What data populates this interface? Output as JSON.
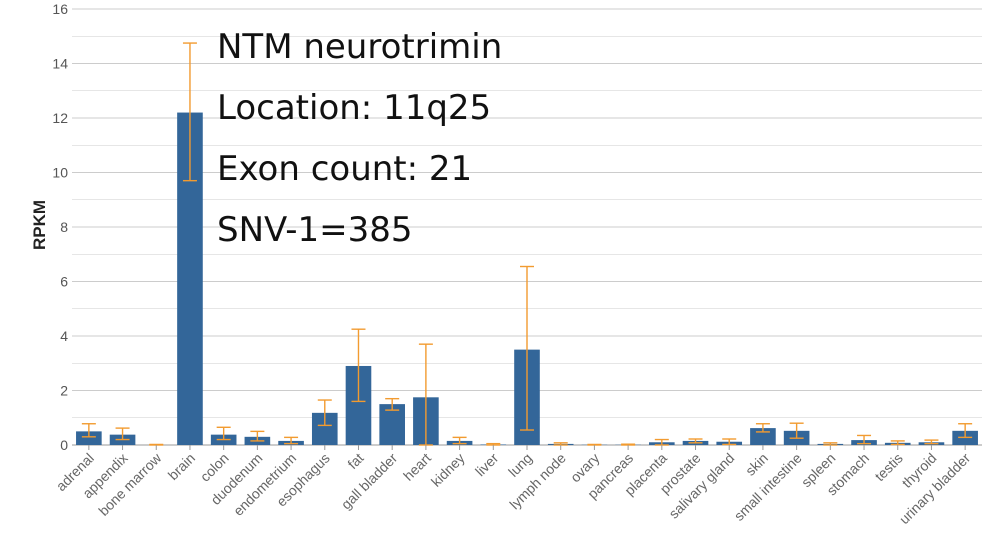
{
  "chart_data": {
    "type": "bar",
    "annotations": [
      "NTM neurotrimin",
      "Location: 11q25",
      "Exon count: 21",
      "SNV-1=385"
    ],
    "xlabel": "",
    "ylabel": "RPKM",
    "ylim": [
      0,
      16
    ],
    "yticks": [
      0,
      2,
      4,
      6,
      8,
      10,
      12,
      14,
      16
    ],
    "grid": true,
    "categories": [
      "adrenal",
      "appendix",
      "bone marrow",
      "brain",
      "colon",
      "duodenum",
      "endometrium",
      "esophagus",
      "fat",
      "gall bladder",
      "heart",
      "kidney",
      "liver",
      "lung",
      "lymph node",
      "ovary",
      "pancreas",
      "placenta",
      "prostate",
      "salivary gland",
      "skin",
      "small intestine",
      "spleen",
      "stomach",
      "testis",
      "thyroid",
      "urinary bladder"
    ],
    "values": [
      0.5,
      0.38,
      0.0,
      12.2,
      0.38,
      0.3,
      0.15,
      1.18,
      2.9,
      1.5,
      1.75,
      0.15,
      0.02,
      3.5,
      0.04,
      0.01,
      0.01,
      0.1,
      0.15,
      0.12,
      0.62,
      0.52,
      0.04,
      0.18,
      0.08,
      0.1,
      0.52
    ],
    "err_low": [
      0.3,
      0.2,
      0.0,
      9.7,
      0.2,
      0.15,
      0.05,
      0.72,
      1.6,
      1.28,
      0.0,
      0.05,
      0.0,
      0.55,
      0.0,
      0.0,
      0.0,
      0.0,
      0.08,
      0.02,
      0.48,
      0.25,
      0.0,
      0.05,
      0.02,
      0.05,
      0.28
    ],
    "err_high": [
      0.78,
      0.62,
      0.02,
      14.75,
      0.65,
      0.5,
      0.28,
      1.65,
      4.25,
      1.7,
      3.7,
      0.28,
      0.05,
      6.55,
      0.08,
      0.02,
      0.03,
      0.2,
      0.22,
      0.22,
      0.78,
      0.8,
      0.08,
      0.35,
      0.15,
      0.18,
      0.78
    ],
    "colors": {
      "bar": "#336699",
      "error": "#f29b30",
      "grid": "#cccccc",
      "axis": "#999999"
    }
  }
}
